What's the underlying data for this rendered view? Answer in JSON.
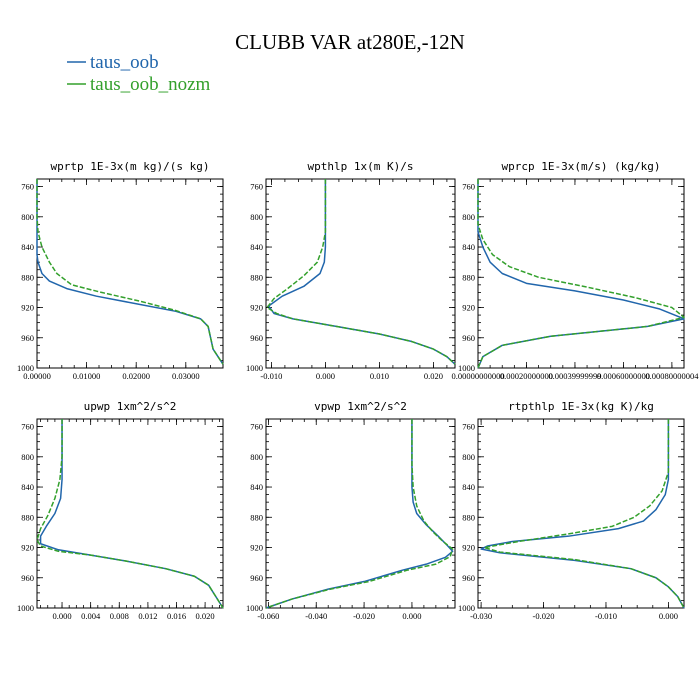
{
  "figure": {
    "title": "CLUBB VAR at280E,-12N"
  },
  "colors": {
    "taus_oob": "#2166ac",
    "taus_oob_nozm": "#33a02c"
  },
  "legend": [
    {
      "name": "taus_oob",
      "color": "#2166ac",
      "dashed": false
    },
    {
      "name": "taus_oob_nozm",
      "color": "#33a02c",
      "dashed": true
    }
  ],
  "chart_data": [
    {
      "type": "line",
      "title": "wprtp  1E-3x(m kg)/(s kg)",
      "xlim": [
        0,
        0.0375
      ],
      "ylim": [
        1000,
        750
      ],
      "xticks": [
        0,
        0.01,
        0.02,
        0.03
      ],
      "xtick_labels": [
        "0.00000",
        "0.01000",
        "0.02000",
        "0.03000"
      ],
      "yticks": [
        760,
        800,
        840,
        880,
        920,
        960,
        1000
      ],
      "ytick_labels": [
        "760",
        "800",
        "840",
        "880",
        "920",
        "960",
        "1000"
      ],
      "series": [
        {
          "name": "taus_oob",
          "points": [
            [
              0,
              750
            ],
            [
              0,
              830
            ],
            [
              0,
              850
            ],
            [
              0.0002,
              860
            ],
            [
              0.001,
              875
            ],
            [
              0.0025,
              885
            ],
            [
              0.006,
              895
            ],
            [
              0.012,
              905
            ],
            [
              0.02,
              915
            ],
            [
              0.028,
              925
            ],
            [
              0.033,
              935
            ],
            [
              0.0345,
              945
            ],
            [
              0.035,
              960
            ],
            [
              0.0355,
              975
            ],
            [
              0.0365,
              985
            ],
            [
              0.0375,
              995
            ]
          ]
        },
        {
          "name": "taus_oob_nozm",
          "points": [
            [
              0,
              750
            ],
            [
              0,
              800
            ],
            [
              0.0002,
              820
            ],
            [
              0.001,
              840
            ],
            [
              0.0025,
              860
            ],
            [
              0.004,
              875
            ],
            [
              0.007,
              890
            ],
            [
              0.013,
              900
            ],
            [
              0.021,
              912
            ],
            [
              0.028,
              924
            ],
            [
              0.033,
              935
            ],
            [
              0.0345,
              945
            ],
            [
              0.035,
              960
            ],
            [
              0.0355,
              975
            ],
            [
              0.0365,
              985
            ],
            [
              0.0375,
              995
            ]
          ]
        }
      ]
    },
    {
      "type": "line",
      "title": "wpthlp  1x(m K)/s",
      "xlim": [
        -0.011,
        0.024
      ],
      "ylim": [
        1000,
        750
      ],
      "xticks": [
        -0.01,
        0,
        0.01,
        0.02
      ],
      "xtick_labels": [
        "-0.010",
        "0.000",
        "0.010",
        "0.020"
      ],
      "yticks": [
        760,
        800,
        840,
        880,
        920,
        960,
        1000
      ],
      "ytick_labels": [
        "760",
        "800",
        "840",
        "880",
        "920",
        "960",
        "1000"
      ],
      "series": [
        {
          "name": "taus_oob",
          "points": [
            [
              0,
              750
            ],
            [
              0,
              840
            ],
            [
              -0.0002,
              860
            ],
            [
              -0.001,
              875
            ],
            [
              -0.004,
              892
            ],
            [
              -0.008,
              905
            ],
            [
              -0.0105,
              918
            ],
            [
              -0.0095,
              928
            ],
            [
              -0.006,
              935
            ],
            [
              0.002,
              945
            ],
            [
              0.01,
              955
            ],
            [
              0.016,
              965
            ],
            [
              0.02,
              975
            ],
            [
              0.0225,
              985
            ],
            [
              0.024,
              995
            ]
          ]
        },
        {
          "name": "taus_oob_nozm",
          "points": [
            [
              0,
              750
            ],
            [
              0,
              820
            ],
            [
              -0.0005,
              840
            ],
            [
              -0.0015,
              860
            ],
            [
              -0.004,
              878
            ],
            [
              -0.007,
              895
            ],
            [
              -0.0095,
              908
            ],
            [
              -0.0108,
              920
            ],
            [
              -0.009,
              928
            ],
            [
              -0.006,
              935
            ],
            [
              0.002,
              945
            ],
            [
              0.01,
              955
            ],
            [
              0.016,
              965
            ],
            [
              0.02,
              975
            ],
            [
              0.0225,
              985
            ],
            [
              0.024,
              995
            ]
          ]
        }
      ]
    },
    {
      "type": "line",
      "title": "wprcp  1E-3x(m/s) (kg/kg)",
      "xlim": [
        0,
        0.00085
      ],
      "ylim": [
        1000,
        750
      ],
      "xticks": [
        0,
        0.0002,
        0.0004,
        0.0006,
        0.0008
      ],
      "xtick_labels": [
        "0.00000000000",
        "0.00020000000",
        "0.00039999999",
        "0.00060000000",
        "0.00080000004"
      ],
      "yticks": [
        760,
        800,
        840,
        880,
        920,
        960,
        1000
      ],
      "ytick_labels": [
        "760",
        "800",
        "840",
        "880",
        "920",
        "960",
        "1000"
      ],
      "series": [
        {
          "name": "taus_oob",
          "points": [
            [
              0,
              750
            ],
            [
              0,
              820
            ],
            [
              2e-05,
              840
            ],
            [
              5e-05,
              860
            ],
            [
              0.0001,
              875
            ],
            [
              0.0002,
              888
            ],
            [
              0.0004,
              898
            ],
            [
              0.0006,
              910
            ],
            [
              0.00075,
              922
            ],
            [
              0.00085,
              935
            ],
            [
              0.0007,
              945
            ],
            [
              0.0003,
              958
            ],
            [
              0.0001,
              970
            ],
            [
              2e-05,
              985
            ],
            [
              0,
              1000
            ]
          ]
        },
        {
          "name": "taus_oob_nozm",
          "points": [
            [
              0,
              750
            ],
            [
              0,
              810
            ],
            [
              2e-05,
              830
            ],
            [
              6e-05,
              850
            ],
            [
              0.00013,
              866
            ],
            [
              0.00025,
              880
            ],
            [
              0.00045,
              893
            ],
            [
              0.00065,
              907
            ],
            [
              0.0008,
              920
            ],
            [
              0.00085,
              933
            ],
            [
              0.0007,
              945
            ],
            [
              0.0003,
              958
            ],
            [
              0.0001,
              970
            ],
            [
              2e-05,
              985
            ],
            [
              0,
              1000
            ]
          ]
        }
      ]
    },
    {
      "type": "line",
      "title": "upwp  1xm^2/s^2",
      "xlim": [
        -0.0035,
        0.0225
      ],
      "ylim": [
        1000,
        750
      ],
      "xticks": [
        0,
        0.004,
        0.008,
        0.012,
        0.016,
        0.02
      ],
      "xtick_labels": [
        "0.000",
        "0.004",
        "0.008",
        "0.012",
        "0.016",
        "0.020"
      ],
      "yticks": [
        760,
        800,
        840,
        880,
        920,
        960,
        1000
      ],
      "ytick_labels": [
        "760",
        "800",
        "840",
        "880",
        "920",
        "960",
        "1000"
      ],
      "series": [
        {
          "name": "taus_oob",
          "points": [
            [
              0,
              750
            ],
            [
              0,
              830
            ],
            [
              -0.0002,
              855
            ],
            [
              -0.001,
              875
            ],
            [
              -0.0022,
              892
            ],
            [
              -0.003,
              905
            ],
            [
              -0.003,
              915
            ],
            [
              -0.0005,
              923
            ],
            [
              0.004,
              930
            ],
            [
              0.009,
              938
            ],
            [
              0.0145,
              948
            ],
            [
              0.0185,
              958
            ],
            [
              0.0205,
              970
            ],
            [
              0.0215,
              985
            ],
            [
              0.0225,
              1000
            ]
          ]
        },
        {
          "name": "taus_oob_nozm",
          "points": [
            [
              0,
              750
            ],
            [
              0,
              800
            ],
            [
              -0.0003,
              830
            ],
            [
              -0.001,
              855
            ],
            [
              -0.002,
              878
            ],
            [
              -0.003,
              895
            ],
            [
              -0.0035,
              910
            ],
            [
              -0.003,
              918
            ],
            [
              -0.0005,
              925
            ],
            [
              0.004,
              930
            ],
            [
              0.009,
              938
            ],
            [
              0.0145,
              948
            ],
            [
              0.0185,
              958
            ],
            [
              0.0205,
              970
            ],
            [
              0.0215,
              985
            ],
            [
              0.0225,
              1000
            ]
          ]
        }
      ]
    },
    {
      "type": "line",
      "title": "vpwp  1xm^2/s^2",
      "xlim": [
        -0.061,
        0.018
      ],
      "ylim": [
        1000,
        750
      ],
      "xticks": [
        -0.06,
        -0.04,
        -0.02,
        0
      ],
      "xtick_labels": [
        "-0.060",
        "-0.040",
        "-0.020",
        "0.000"
      ],
      "yticks": [
        760,
        800,
        840,
        880,
        920,
        960,
        1000
      ],
      "ytick_labels": [
        "760",
        "800",
        "840",
        "880",
        "920",
        "960",
        "1000"
      ],
      "series": [
        {
          "name": "taus_oob",
          "points": [
            [
              0,
              750
            ],
            [
              0,
              840
            ],
            [
              0.0005,
              860
            ],
            [
              0.002,
              875
            ],
            [
              0.006,
              890
            ],
            [
              0.011,
              905
            ],
            [
              0.015,
              918
            ],
            [
              0.017,
              925
            ],
            [
              0.014,
              933
            ],
            [
              0.006,
              942
            ],
            [
              -0.004,
              950
            ],
            [
              -0.02,
              965
            ],
            [
              -0.035,
              975
            ],
            [
              -0.05,
              988
            ],
            [
              -0.061,
              1000
            ]
          ]
        },
        {
          "name": "taus_oob_nozm",
          "points": [
            [
              0,
              750
            ],
            [
              0,
              810
            ],
            [
              0.0005,
              840
            ],
            [
              0.002,
              865
            ],
            [
              0.005,
              885
            ],
            [
              0.009,
              900
            ],
            [
              0.013,
              912
            ],
            [
              0.017,
              922
            ],
            [
              0.016,
              932
            ],
            [
              0.01,
              942
            ],
            [
              -0.002,
              950
            ],
            [
              -0.018,
              965
            ],
            [
              -0.034,
              975
            ],
            [
              -0.05,
              988
            ],
            [
              -0.061,
              1000
            ]
          ]
        }
      ]
    },
    {
      "type": "line",
      "title": "rtpthlp  1E-3x(kg K)/kg",
      "xlim": [
        -0.0305,
        0.0025
      ],
      "ylim": [
        1000,
        750
      ],
      "xticks": [
        -0.03,
        -0.02,
        -0.01,
        0
      ],
      "xtick_labels": [
        "-0.030",
        "-0.020",
        "-0.010",
        "0.000"
      ],
      "yticks": [
        760,
        800,
        840,
        880,
        920,
        960,
        1000
      ],
      "ytick_labels": [
        "760",
        "800",
        "840",
        "880",
        "920",
        "960",
        "1000"
      ],
      "series": [
        {
          "name": "taus_oob",
          "points": [
            [
              0,
              750
            ],
            [
              0,
              830
            ],
            [
              -0.0005,
              850
            ],
            [
              -0.002,
              870
            ],
            [
              -0.004,
              885
            ],
            [
              -0.008,
              895
            ],
            [
              -0.016,
              905
            ],
            [
              -0.025,
              912
            ],
            [
              -0.029,
              918
            ],
            [
              -0.03,
              922
            ],
            [
              -0.027,
              927
            ],
            [
              -0.015,
              937
            ],
            [
              -0.006,
              948
            ],
            [
              -0.002,
              960
            ],
            [
              0,
              972
            ],
            [
              0.0015,
              985
            ],
            [
              0.0025,
              1000
            ]
          ]
        },
        {
          "name": "taus_oob_nozm",
          "points": [
            [
              0,
              750
            ],
            [
              0,
              820
            ],
            [
              -0.001,
              845
            ],
            [
              -0.003,
              865
            ],
            [
              -0.0055,
              880
            ],
            [
              -0.009,
              892
            ],
            [
              -0.016,
              902
            ],
            [
              -0.024,
              912
            ],
            [
              -0.0295,
              920
            ],
            [
              -0.027,
              926
            ],
            [
              -0.015,
              936
            ],
            [
              -0.006,
              948
            ],
            [
              -0.002,
              960
            ],
            [
              0,
              972
            ],
            [
              0.0015,
              985
            ],
            [
              0.0025,
              1000
            ]
          ]
        }
      ]
    }
  ]
}
